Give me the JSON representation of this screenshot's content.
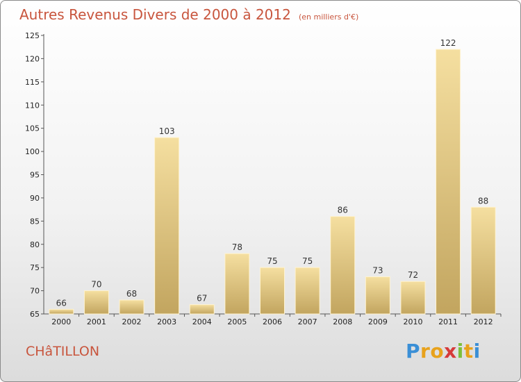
{
  "header": {
    "title": "Autres Revenus Divers de 2000 à 2012",
    "unit": "(en milliers d'€)"
  },
  "footer": {
    "commune": "CHâTILLON",
    "logo_letters": [
      {
        "ch": "P",
        "color": "#3a8fd6"
      },
      {
        "ch": "r",
        "color": "#e8a21c"
      },
      {
        "ch": "o",
        "color": "#e8a21c"
      },
      {
        "ch": "x",
        "color": "#d63a3a"
      },
      {
        "ch": "i",
        "color": "#7cbf3a"
      },
      {
        "ch": "t",
        "color": "#e8a21c"
      },
      {
        "ch": "i",
        "color": "#3a8fd6"
      }
    ]
  },
  "chart_data": {
    "type": "bar",
    "title": "Autres Revenus Divers de 2000 à 2012",
    "subtitle": "(en milliers d'€)",
    "categories": [
      "2000",
      "2001",
      "2002",
      "2003",
      "2004",
      "2005",
      "2006",
      "2007",
      "2008",
      "2009",
      "2010",
      "2011",
      "2012"
    ],
    "values": [
      66,
      70,
      68,
      103,
      67,
      78,
      75,
      75,
      86,
      73,
      72,
      122,
      88
    ],
    "ylim": [
      65,
      125
    ],
    "yticks": [
      65,
      70,
      75,
      80,
      85,
      90,
      95,
      100,
      105,
      110,
      115,
      120,
      125
    ],
    "grid": false,
    "bar_color_light": "#f5dfa0",
    "bar_color_dark": "#c2a55f"
  }
}
